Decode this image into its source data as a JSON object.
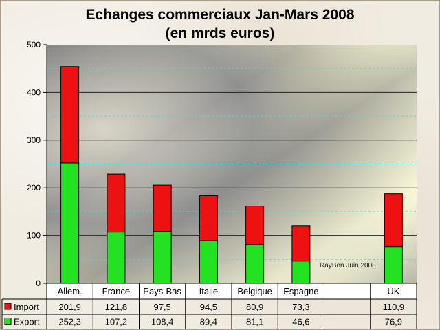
{
  "chart_data": {
    "type": "bar",
    "stacked": true,
    "title_line1": "Echanges commerciaux Jan-Mars 2008",
    "title_line2": "(en mrds euros)",
    "categories": [
      "Allem.",
      "France",
      "Pays-Bas",
      "Italie",
      "Belgique",
      "Espagne",
      "",
      "UK"
    ],
    "series": [
      {
        "name": "Export",
        "color": "#22e222",
        "values": [
          252.3,
          107.2,
          108.4,
          89.4,
          81.1,
          46.6,
          null,
          76.9
        ],
        "labels": [
          "252,3",
          "107,2",
          "108,4",
          "89,4",
          "81,1",
          "46,6",
          "",
          "76,9"
        ]
      },
      {
        "name": "Import",
        "color": "#ee1111",
        "values": [
          201.9,
          121.8,
          97.5,
          94.5,
          80.9,
          73.3,
          null,
          110.9
        ],
        "labels": [
          "201,9",
          "121,8",
          "97,5",
          "94,5",
          "80,9",
          "73,3",
          "",
          "110,9"
        ]
      }
    ],
    "ylim": [
      0,
      500
    ],
    "yticks": [
      0,
      100,
      200,
      300,
      400,
      500
    ],
    "grid": true,
    "legend": "data-table",
    "annotation": "RayBon Juin 2008"
  }
}
